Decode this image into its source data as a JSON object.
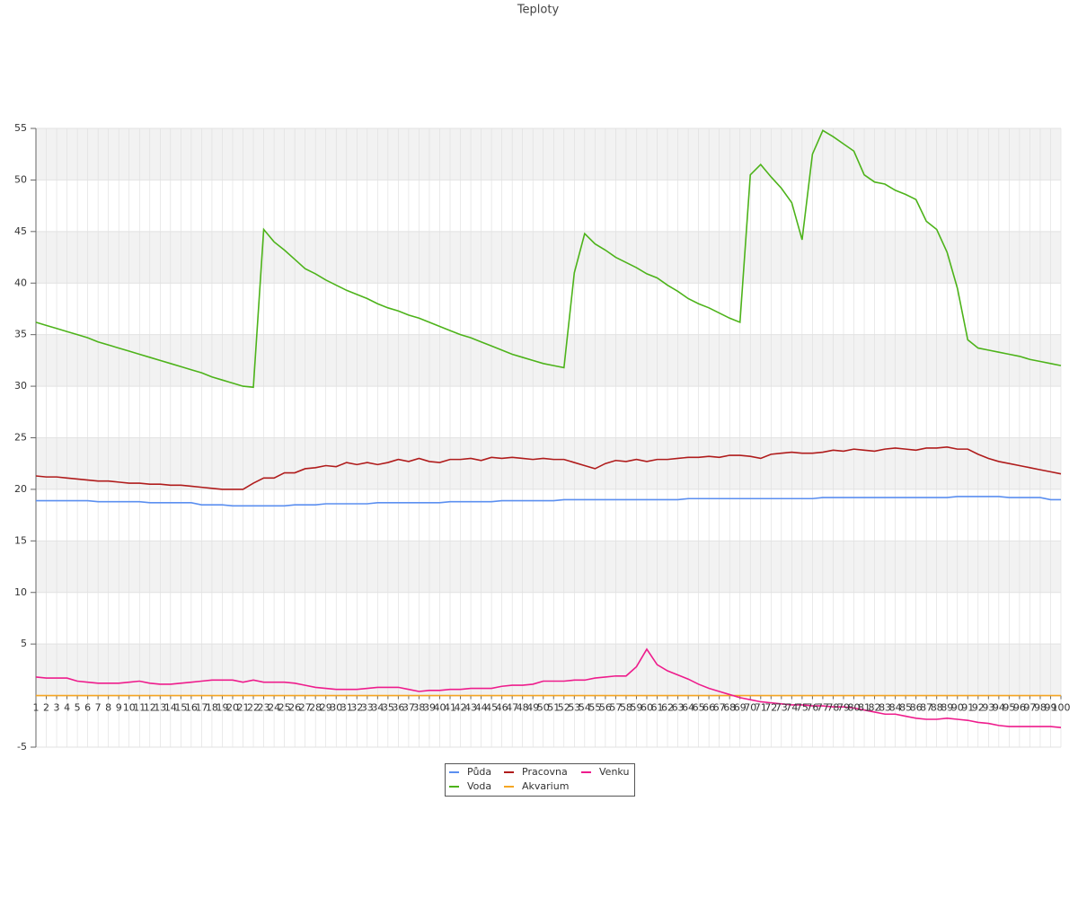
{
  "chart_data": {
    "type": "line",
    "title": "Teploty",
    "categories": [
      1,
      2,
      3,
      4,
      5,
      6,
      7,
      8,
      9,
      10,
      11,
      12,
      13,
      14,
      15,
      16,
      17,
      18,
      19,
      20,
      21,
      22,
      23,
      24,
      25,
      26,
      27,
      28,
      29,
      30,
      31,
      32,
      33,
      34,
      35,
      36,
      37,
      38,
      39,
      40,
      41,
      42,
      43,
      44,
      45,
      46,
      47,
      48,
      49,
      50,
      51,
      52,
      53,
      54,
      55,
      56,
      57,
      58,
      59,
      60,
      61,
      62,
      63,
      64,
      65,
      66,
      67,
      68,
      69,
      70,
      71,
      72,
      73,
      74,
      75,
      76,
      77,
      78,
      79,
      80,
      81,
      82,
      83,
      84,
      85,
      86,
      87,
      88,
      89,
      90,
      91,
      92,
      93,
      94,
      95,
      96,
      97,
      98,
      99,
      100
    ],
    "series": [
      {
        "name": "Půda",
        "color": "#5b8ff0",
        "values": [
          18.9,
          18.9,
          18.9,
          18.9,
          18.9,
          18.9,
          18.8,
          18.8,
          18.8,
          18.8,
          18.8,
          18.7,
          18.7,
          18.7,
          18.7,
          18.7,
          18.5,
          18.5,
          18.5,
          18.4,
          18.4,
          18.4,
          18.4,
          18.4,
          18.4,
          18.5,
          18.5,
          18.5,
          18.6,
          18.6,
          18.6,
          18.6,
          18.6,
          18.7,
          18.7,
          18.7,
          18.7,
          18.7,
          18.7,
          18.7,
          18.8,
          18.8,
          18.8,
          18.8,
          18.8,
          18.9,
          18.9,
          18.9,
          18.9,
          18.9,
          18.9,
          19.0,
          19.0,
          19.0,
          19.0,
          19.0,
          19.0,
          19.0,
          19.0,
          19.0,
          19.0,
          19.0,
          19.0,
          19.1,
          19.1,
          19.1,
          19.1,
          19.1,
          19.1,
          19.1,
          19.1,
          19.1,
          19.1,
          19.1,
          19.1,
          19.1,
          19.2,
          19.2,
          19.2,
          19.2,
          19.2,
          19.2,
          19.2,
          19.2,
          19.2,
          19.2,
          19.2,
          19.2,
          19.2,
          19.3,
          19.3,
          19.3,
          19.3,
          19.3,
          19.2,
          19.2,
          19.2,
          19.2,
          19.0,
          19.0
        ]
      },
      {
        "name": "Voda",
        "color": "#4db31a",
        "values": [
          36.2,
          35.9,
          35.6,
          35.3,
          35.0,
          34.7,
          34.3,
          34.0,
          33.7,
          33.4,
          33.1,
          32.8,
          32.5,
          32.2,
          31.9,
          31.6,
          31.3,
          30.9,
          30.6,
          30.3,
          30.0,
          29.9,
          45.2,
          44.0,
          43.2,
          42.3,
          41.4,
          40.9,
          40.3,
          39.8,
          39.3,
          38.9,
          38.5,
          38.0,
          37.6,
          37.3,
          36.9,
          36.6,
          36.2,
          35.8,
          35.4,
          35.0,
          34.7,
          34.3,
          33.9,
          33.5,
          33.1,
          32.8,
          32.5,
          32.2,
          32.0,
          31.8,
          41,
          44.8,
          43.8,
          43.2,
          42.5,
          42.0,
          41.5,
          40.9,
          40.5,
          39.8,
          39.2,
          38.5,
          38.0,
          37.6,
          37.1,
          36.6,
          36.2,
          50.5,
          51.5,
          50.3,
          49.2,
          47.8,
          44.2,
          52.5,
          54.8,
          54.2,
          53.5,
          52.8,
          50.5,
          49.8,
          49.6,
          49.0,
          48.6,
          48.1,
          46.0,
          45.2,
          43.0,
          39.5,
          34.5,
          33.7,
          33.5,
          33.3,
          33.1,
          32.9,
          32.6,
          32.4,
          32.2,
          32.0
        ]
      },
      {
        "name": "Pracovna",
        "color": "#b01c1c",
        "values": [
          21.3,
          21.2,
          21.2,
          21.1,
          21.0,
          20.9,
          20.8,
          20.8,
          20.7,
          20.6,
          20.6,
          20.5,
          20.5,
          20.4,
          20.4,
          20.3,
          20.2,
          20.1,
          20.0,
          20.0,
          20.0,
          20.6,
          21.1,
          21.1,
          21.6,
          21.6,
          22.0,
          22.1,
          22.3,
          22.2,
          22.6,
          22.4,
          22.6,
          22.4,
          22.6,
          22.9,
          22.7,
          23.0,
          22.7,
          22.6,
          22.9,
          22.9,
          23.0,
          22.8,
          23.1,
          23.0,
          23.1,
          23.0,
          22.9,
          23.0,
          22.9,
          22.9,
          22.6,
          22.3,
          22.0,
          22.5,
          22.8,
          22.7,
          22.9,
          22.7,
          22.9,
          22.9,
          23.0,
          23.1,
          23.1,
          23.2,
          23.1,
          23.3,
          23.3,
          23.2,
          23.0,
          23.4,
          23.5,
          23.6,
          23.5,
          23.5,
          23.6,
          23.8,
          23.7,
          23.9,
          23.8,
          23.7,
          23.9,
          24.0,
          23.9,
          23.8,
          24.0,
          24.0,
          24.1,
          23.9,
          23.9,
          23.4,
          23.0,
          22.7,
          22.5,
          22.3,
          22.1,
          21.9,
          21.7,
          21.5
        ]
      },
      {
        "name": "Akvarium",
        "color": "#f5a623",
        "values": [
          0,
          0,
          0,
          0,
          0,
          0,
          0,
          0,
          0,
          0,
          0,
          0,
          0,
          0,
          0,
          0,
          0,
          0,
          0,
          0,
          0,
          0,
          0,
          0,
          0,
          0,
          0,
          0,
          0,
          0,
          0,
          0,
          0,
          0,
          0,
          0,
          0,
          0,
          0,
          0,
          0,
          0,
          0,
          0,
          0,
          0,
          0,
          0,
          0,
          0,
          0,
          0,
          0,
          0,
          0,
          0,
          0,
          0,
          0,
          0,
          0,
          0,
          0,
          0,
          0,
          0,
          0,
          0,
          0,
          0,
          0,
          0,
          0,
          0,
          0,
          0,
          0,
          0,
          0,
          0,
          0,
          0,
          0,
          0,
          0,
          0,
          0,
          0,
          0,
          0,
          0,
          0,
          0,
          0,
          0,
          0,
          0,
          0,
          0,
          0
        ]
      },
      {
        "name": "Venku",
        "color": "#ee1c8c",
        "values": [
          1.8,
          1.7,
          1.7,
          1.7,
          1.4,
          1.3,
          1.2,
          1.2,
          1.2,
          1.3,
          1.4,
          1.2,
          1.1,
          1.1,
          1.2,
          1.3,
          1.4,
          1.5,
          1.5,
          1.5,
          1.3,
          1.5,
          1.3,
          1.3,
          1.3,
          1.2,
          1.0,
          0.8,
          0.7,
          0.6,
          0.6,
          0.6,
          0.7,
          0.8,
          0.8,
          0.8,
          0.6,
          0.4,
          0.5,
          0.5,
          0.6,
          0.6,
          0.7,
          0.7,
          0.7,
          0.9,
          1.0,
          1.0,
          1.1,
          1.4,
          1.4,
          1.4,
          1.5,
          1.5,
          1.7,
          1.8,
          1.9,
          1.9,
          2.8,
          4.5,
          3.0,
          2.4,
          2.0,
          1.6,
          1.1,
          0.7,
          0.4,
          0.1,
          -0.2,
          -0.4,
          -0.6,
          -0.7,
          -0.8,
          -0.9,
          -0.9,
          -1.0,
          -1.0,
          -1.1,
          -1.1,
          -1.2,
          -1.4,
          -1.6,
          -1.8,
          -1.8,
          -2.0,
          -2.2,
          -2.3,
          -2.3,
          -2.2,
          -2.3,
          -2.4,
          -2.6,
          -2.7,
          -2.9,
          -3.0,
          -3.0,
          -3.0,
          -3.0,
          -3.0,
          -3.1
        ]
      }
    ],
    "ylim": [
      -5,
      55
    ],
    "yticks": [
      -5,
      5,
      10,
      15,
      20,
      25,
      30,
      35,
      40,
      45,
      50,
      55
    ],
    "grid": true
  }
}
